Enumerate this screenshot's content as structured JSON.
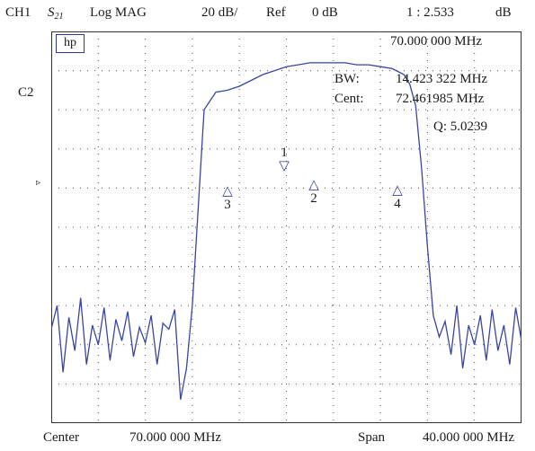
{
  "header": {
    "channel": "CH1",
    "param_main": "S",
    "param_sub": "21",
    "format": "Log  MAG",
    "scale": "20 dB/",
    "ref_label": "Ref",
    "ref_value": "0 dB",
    "marker_readout": "1 : 2.533",
    "unit": "dB"
  },
  "channel2_label": "C2",
  "logo": "hp",
  "ref_arrow": "▹",
  "readouts": {
    "freq": "70.000 000 MHz",
    "bw_label": "BW:",
    "bw_value": "14.423 322  MHz",
    "cent_label": "Cent:",
    "cent_value": "72.461985  MHz",
    "q": "Q: 5.0239"
  },
  "markers": [
    {
      "label": "1",
      "glyph": "▽"
    },
    {
      "label": "2",
      "glyph": "△"
    },
    {
      "label": "3",
      "glyph": "△"
    },
    {
      "label": "4",
      "glyph": "△"
    }
  ],
  "footer": {
    "center_label": "Center",
    "center_value": "70.000  000  MHz",
    "span_label": "Span",
    "span_value": "40.000  000  MHz"
  },
  "colors": {
    "trace": "#3a45a0",
    "grid": "#4a4a4a",
    "border": "#333333"
  },
  "chart_data": {
    "type": "line",
    "grid": "dotted",
    "divisions": {
      "x": 10,
      "y": 10
    },
    "x_center_mhz": 70.0,
    "x_span_mhz": 40.0,
    "xlim": [
      50,
      90
    ],
    "ylim": [
      -200,
      0
    ],
    "series": [
      {
        "x": [
          50.0,
          50.5,
          51.0,
          51.5,
          52.0,
          52.5,
          53.0,
          53.5,
          54.0,
          54.5,
          55.0,
          55.5,
          56.0,
          56.5,
          57.0,
          57.5,
          58.0,
          58.5,
          59.0,
          59.5,
          60.0,
          60.5,
          61.0,
          61.5,
          62.0,
          63.0,
          64.0,
          65.0,
          66.0,
          67.0,
          68.0,
          69.0,
          70.0,
          71.0,
          72.0,
          73.0,
          74.0,
          75.0,
          76.0,
          77.0,
          78.0,
          79.0,
          80.0,
          80.5,
          81.0,
          81.5,
          82.0,
          82.5,
          83.0,
          83.5,
          84.0,
          84.5,
          85.0,
          85.5,
          86.0,
          86.5,
          87.0,
          87.5,
          88.0,
          88.5,
          89.0,
          89.5,
          90.0
        ],
        "y": [
          -152,
          -140,
          -174,
          -146,
          -163,
          -136,
          -170,
          -150,
          -160,
          -141,
          -168,
          -147,
          -158,
          -143,
          -166,
          -151,
          -159,
          -145,
          -170,
          -149,
          -152,
          -142,
          -188,
          -172,
          -140,
          -40,
          -31,
          -30,
          -28,
          -25,
          -22,
          -20,
          -18,
          -17,
          -16,
          -16,
          -16,
          -16,
          -17,
          -17,
          -18,
          -19,
          -22,
          -27,
          -38,
          -70,
          -110,
          -145,
          -156,
          -148,
          -165,
          -140,
          -172,
          -150,
          -160,
          -145,
          -168,
          -142,
          -163,
          -150,
          -170,
          -141,
          -158
        ]
      }
    ]
  }
}
